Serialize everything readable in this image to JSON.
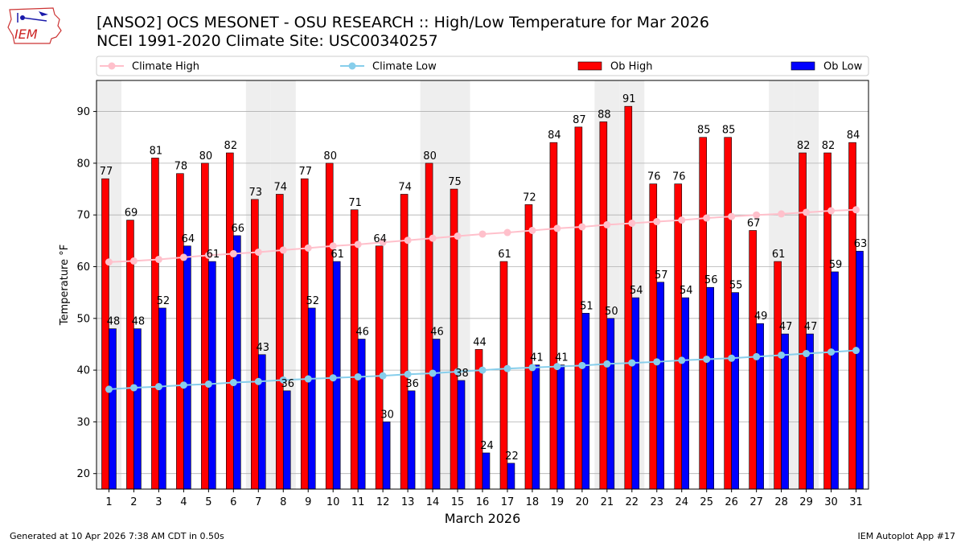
{
  "header": {
    "logo_text": "IEM",
    "title_line1": "[ANSO2] OCS MESONET - OSU RESEARCH :: High/Low Temperature for Mar 2026",
    "title_line2": "NCEI 1991-2020 Climate Site: USC00340257"
  },
  "footer": {
    "generated": "Generated at 10 Apr 2026 7:38 AM CDT in 0.50s",
    "app": "IEM Autoplot App #17"
  },
  "colors": {
    "ob_high": "#ff0000",
    "ob_low": "#0000ff",
    "climate_high": "#ffc0cb",
    "climate_low": "#87ceeb",
    "weekend_shade": "#eeeeee",
    "grid": "#b0b0b0"
  },
  "chart_data": {
    "type": "bar",
    "title": "[ANSO2] OCS MESONET - OSU RESEARCH :: High/Low Temperature for Mar 2026",
    "subtitle": "NCEI 1991-2020 Climate Site: USC00340257",
    "xlabel": "March 2026",
    "ylabel": "Temperature °F",
    "ylim": [
      17,
      96
    ],
    "yticks": [
      20,
      30,
      40,
      50,
      60,
      70,
      80,
      90
    ],
    "grid": true,
    "legend_position": "top",
    "categories": [
      "1",
      "2",
      "3",
      "4",
      "5",
      "6",
      "7",
      "8",
      "9",
      "10",
      "11",
      "12",
      "13",
      "14",
      "15",
      "16",
      "17",
      "18",
      "19",
      "20",
      "21",
      "22",
      "23",
      "24",
      "25",
      "26",
      "27",
      "28",
      "29",
      "30",
      "31"
    ],
    "shaded_days": [
      1,
      7,
      8,
      14,
      15,
      21,
      22,
      28,
      29
    ],
    "series": [
      {
        "name": "Ob High",
        "kind": "bar",
        "color": "#ff0000",
        "values": [
          77,
          69,
          81,
          78,
          80,
          82,
          73,
          74,
          77,
          80,
          71,
          64,
          74,
          80,
          75,
          44,
          61,
          72,
          84,
          87,
          88,
          91,
          76,
          76,
          85,
          85,
          67,
          61,
          82,
          82,
          84
        ]
      },
      {
        "name": "Ob Low",
        "kind": "bar",
        "color": "#0000ff",
        "values": [
          48,
          48,
          52,
          64,
          61,
          66,
          43,
          36,
          52,
          61,
          46,
          30,
          36,
          46,
          38,
          24,
          22,
          41,
          41,
          51,
          50,
          54,
          57,
          54,
          56,
          55,
          49,
          47,
          47,
          59,
          63
        ]
      },
      {
        "name": "Climate High",
        "kind": "line",
        "color": "#ffc0cb",
        "values": [
          60.9,
          61.1,
          61.4,
          61.8,
          62.2,
          62.5,
          62.8,
          63.2,
          63.6,
          64.0,
          64.3,
          64.7,
          65.1,
          65.5,
          65.9,
          66.3,
          66.6,
          67.0,
          67.4,
          67.7,
          68.1,
          68.4,
          68.7,
          69.0,
          69.4,
          69.7,
          70.0,
          70.2,
          70.5,
          70.8,
          71.0
        ]
      },
      {
        "name": "Climate Low",
        "kind": "line",
        "color": "#87ceeb",
        "values": [
          36.3,
          36.6,
          36.8,
          37.1,
          37.3,
          37.6,
          37.8,
          38.1,
          38.3,
          38.5,
          38.7,
          38.9,
          39.2,
          39.4,
          39.7,
          40.0,
          40.3,
          40.5,
          40.7,
          40.9,
          41.2,
          41.4,
          41.6,
          41.9,
          42.1,
          42.3,
          42.6,
          42.9,
          43.2,
          43.5,
          43.8
        ]
      }
    ]
  }
}
